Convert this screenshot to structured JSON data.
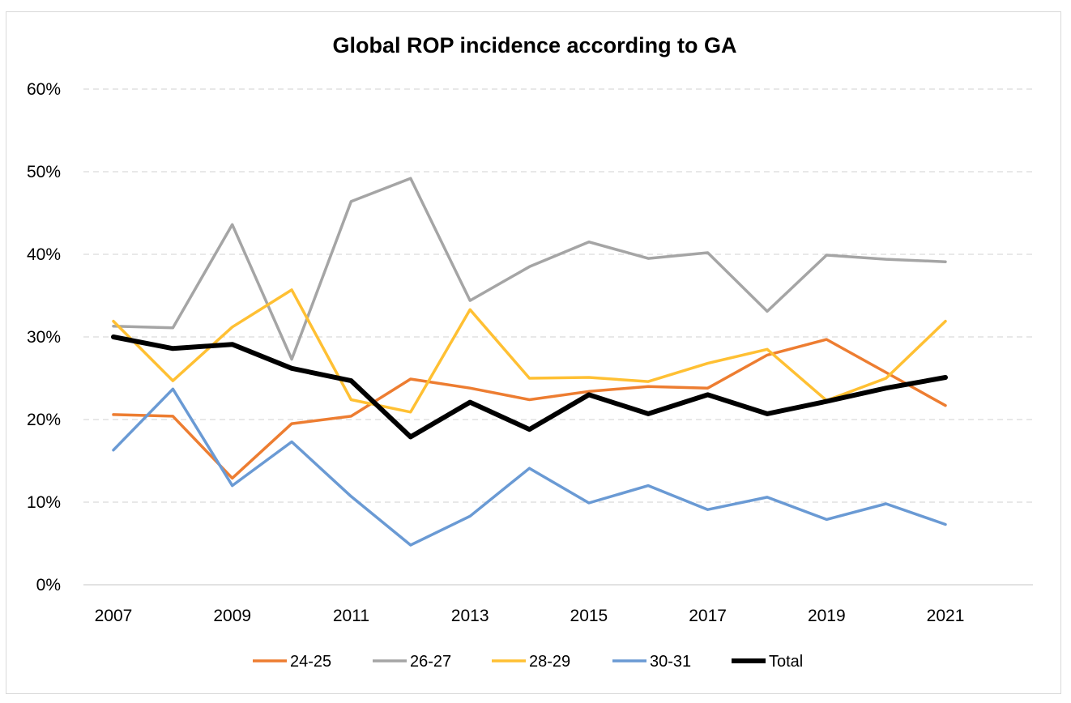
{
  "chart_data": {
    "type": "line",
    "title": "Global ROP incidence according to GA",
    "xlabel": "",
    "ylabel": "",
    "x": [
      2007,
      2008,
      2009,
      2010,
      2011,
      2012,
      2013,
      2014,
      2015,
      2016,
      2017,
      2018,
      2019,
      2020,
      2021
    ],
    "x_tick_labels": [
      "2007",
      "2009",
      "2011",
      "2013",
      "2015",
      "2017",
      "2019",
      "2021"
    ],
    "y_tick_labels": [
      "0%",
      "10%",
      "20%",
      "30%",
      "40%",
      "50%",
      "60%"
    ],
    "ylim": [
      0,
      60
    ],
    "y_unit": "%",
    "grid": "horizontal dashed",
    "legend_position": "bottom",
    "series": [
      {
        "name": "24-25",
        "color": "#ED7D31",
        "width": 3.5,
        "values": [
          20.6,
          20.4,
          12.9,
          19.5,
          20.4,
          24.9,
          23.8,
          22.4,
          23.4,
          24.0,
          23.8,
          27.8,
          29.7,
          25.7,
          21.7
        ]
      },
      {
        "name": "26-27",
        "color": "#A5A5A5",
        "width": 3.5,
        "values": [
          31.3,
          31.1,
          43.6,
          27.3,
          46.4,
          49.2,
          34.4,
          38.5,
          41.5,
          39.5,
          40.2,
          33.1,
          39.9,
          39.4,
          39.1
        ]
      },
      {
        "name": "28-29",
        "color": "#FFC033",
        "width": 3.5,
        "values": [
          31.9,
          24.7,
          31.2,
          35.7,
          22.4,
          20.9,
          33.3,
          25.0,
          25.1,
          24.6,
          26.8,
          28.5,
          22.3,
          25.0,
          31.9
        ]
      },
      {
        "name": "30-31",
        "color": "#6A9AD4",
        "width": 3.5,
        "values": [
          16.3,
          23.7,
          12.0,
          17.3,
          10.7,
          4.8,
          8.3,
          14.1,
          9.9,
          12.0,
          9.1,
          10.6,
          7.9,
          9.8,
          7.3
        ]
      },
      {
        "name": "Total",
        "color": "#000000",
        "width": 6,
        "values": [
          30.0,
          28.6,
          29.1,
          26.2,
          24.7,
          17.9,
          22.1,
          18.8,
          23.0,
          20.7,
          23.0,
          20.7,
          22.2,
          23.8,
          25.1
        ]
      }
    ]
  }
}
